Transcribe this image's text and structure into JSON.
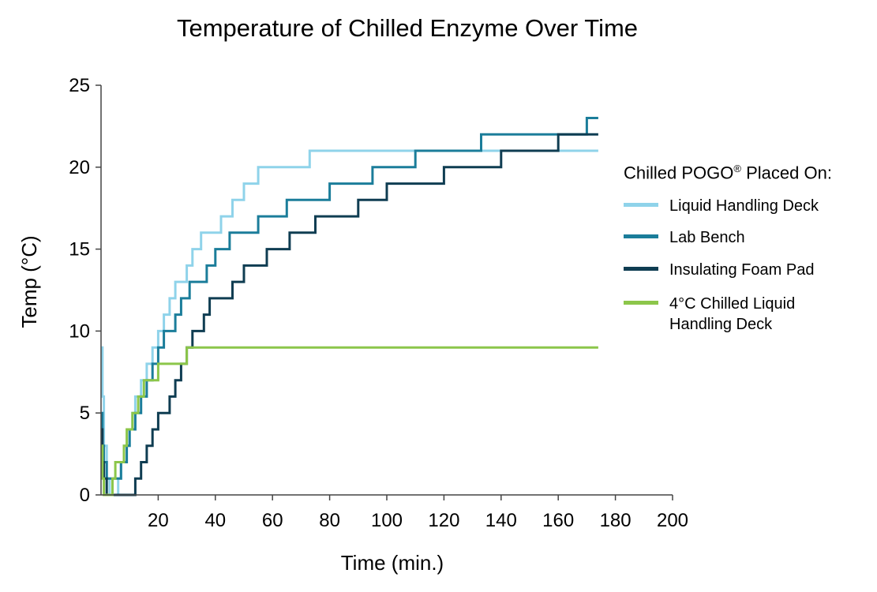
{
  "chart_data": {
    "type": "line",
    "title": "Temperature of Chilled Enzyme Over Time",
    "xlabel": "Time (min.)",
    "ylabel": "Temp (°C)",
    "xlim": [
      0,
      200
    ],
    "ylim": [
      0,
      25
    ],
    "xticks": [
      "20",
      "40",
      "60",
      "80",
      "100",
      "120",
      "140",
      "160",
      "180",
      "200"
    ],
    "xtick_values": [
      20,
      40,
      60,
      80,
      100,
      120,
      140,
      160,
      180,
      200
    ],
    "yticks": [
      "0",
      "5",
      "10",
      "15",
      "20",
      "25"
    ],
    "ytick_values": [
      0,
      5,
      10,
      15,
      20,
      25
    ],
    "grid": false,
    "legend_title_main": "Chilled POGO",
    "legend_title_sup": "®",
    "legend_title_end": " Placed On:",
    "legend_position": "right",
    "series": [
      {
        "name": "Liquid Handling Deck",
        "color": "#8fd3ea",
        "x": [
          0,
          0.5,
          1,
          2,
          3,
          4,
          5,
          6,
          7,
          8,
          9,
          10,
          11,
          12,
          13,
          14,
          15,
          16,
          18,
          20,
          21,
          22,
          24,
          26,
          28,
          30,
          32,
          35,
          38,
          42,
          46,
          50,
          55,
          60,
          65,
          73,
          90,
          110,
          130,
          150,
          174
        ],
        "y": [
          9,
          6,
          3,
          1,
          0,
          0,
          0,
          1,
          2,
          3,
          3,
          4,
          5,
          6,
          6,
          7,
          7,
          8,
          9,
          10,
          10,
          11,
          12,
          13,
          13,
          14,
          15,
          16,
          16,
          17,
          18,
          19,
          20,
          20,
          20,
          21,
          21,
          21,
          21,
          21,
          21
        ]
      },
      {
        "name": "Lab Bench",
        "color": "#1b7d9a",
        "x": [
          0,
          0.5,
          1,
          2,
          3,
          4,
          5,
          6,
          7,
          8,
          9,
          10,
          11,
          12,
          14,
          16,
          18,
          20,
          22,
          24,
          26,
          28,
          31,
          34,
          37,
          40,
          45,
          50,
          55,
          60,
          65,
          70,
          80,
          85,
          95,
          100,
          110,
          112,
          120,
          133,
          140,
          150,
          160,
          168,
          170,
          174
        ],
        "y": [
          5,
          3,
          2,
          1,
          1,
          1,
          1,
          1,
          2,
          2,
          3,
          4,
          4,
          5,
          6,
          7,
          8,
          9,
          10,
          10,
          11,
          12,
          13,
          13,
          14,
          15,
          16,
          16,
          17,
          17,
          18,
          18,
          19,
          19,
          20,
          20,
          21,
          21,
          21,
          22,
          22,
          22,
          22,
          22,
          23,
          23
        ]
      },
      {
        "name": "Insulating Foam Pad",
        "color": "#0f3d52",
        "x": [
          0,
          0.5,
          1,
          2,
          3,
          5,
          7,
          9,
          11,
          12,
          13,
          14,
          15,
          16,
          18,
          20,
          22,
          24,
          26,
          28,
          30,
          32,
          34,
          36,
          38,
          42,
          46,
          50,
          54,
          58,
          62,
          66,
          70,
          75,
          80,
          85,
          90,
          95,
          100,
          105,
          110,
          115,
          120,
          125,
          130,
          135,
          140,
          150,
          160,
          165,
          170,
          174
        ],
        "y": [
          4,
          2,
          1,
          0,
          0,
          0,
          0,
          0,
          0,
          1,
          1,
          2,
          2,
          3,
          4,
          5,
          5,
          6,
          7,
          8,
          9,
          10,
          10,
          11,
          12,
          12,
          13,
          14,
          14,
          15,
          15,
          16,
          16,
          17,
          17,
          17,
          18,
          18,
          19,
          19,
          19,
          19,
          20,
          20,
          20,
          20,
          21,
          21,
          22,
          22,
          22,
          22
        ]
      },
      {
        "name": "4°C Chilled Liquid Handling Deck",
        "color": "#8cc64a",
        "x": [
          0,
          0.5,
          1,
          2,
          3,
          4,
          5,
          6,
          7,
          8,
          9,
          10,
          11,
          12,
          13,
          14,
          15,
          16,
          18,
          20,
          22,
          25,
          28,
          30,
          32,
          40,
          60,
          100,
          140,
          174
        ],
        "y": [
          3,
          1,
          0,
          0,
          0,
          1,
          2,
          2,
          2,
          3,
          4,
          4,
          5,
          5,
          6,
          6,
          7,
          7,
          7,
          8,
          8,
          8,
          8,
          9,
          9,
          9,
          9,
          9,
          9,
          9
        ]
      }
    ]
  }
}
